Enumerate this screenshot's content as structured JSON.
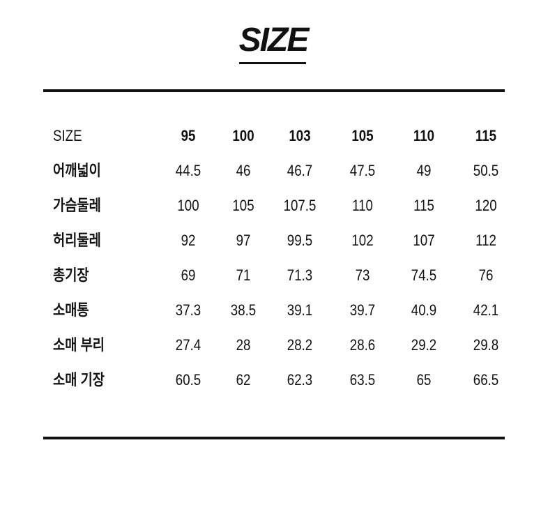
{
  "title": "SIZE",
  "table": {
    "header_label": "SIZE",
    "sizes": [
      "95",
      "100",
      "103",
      "105",
      "110",
      "115"
    ],
    "rows": [
      {
        "label": "어깨넓이",
        "values": [
          "44.5",
          "46",
          "46.7",
          "47.5",
          "49",
          "50.5"
        ]
      },
      {
        "label": "가슴둘레",
        "values": [
          "100",
          "105",
          "107.5",
          "110",
          "115",
          "120"
        ]
      },
      {
        "label": "허리둘레",
        "values": [
          "92",
          "97",
          "99.5",
          "102",
          "107",
          "112"
        ]
      },
      {
        "label": "총기장",
        "values": [
          "69",
          "71",
          "71.3",
          "73",
          "74.5",
          "76"
        ]
      },
      {
        "label": "소매통",
        "values": [
          "37.3",
          "38.5",
          "39.1",
          "39.7",
          "40.9",
          "42.1"
        ]
      },
      {
        "label": "소매 부리",
        "values": [
          "27.4",
          "28",
          "28.2",
          "28.6",
          "29.2",
          "29.8"
        ]
      },
      {
        "label": "소매 기장",
        "values": [
          "60.5",
          "62",
          "62.3",
          "63.5",
          "65",
          "66.5"
        ]
      }
    ]
  }
}
